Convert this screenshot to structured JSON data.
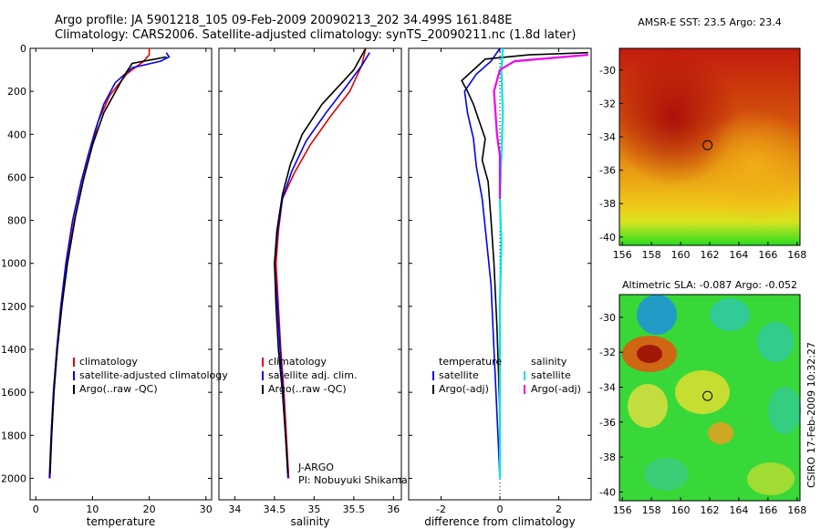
{
  "title_line1": "Argo profile: JA 5901218_105 09-Feb-2009 20090213_202 34.499S 161.848E",
  "title_line2": "Climatology: CARS2006. Satellite-adjusted climatology: synTS_20090211.nc (1.8d later)",
  "side_label": "CSIRO 17-Feb-2009 10:32:27",
  "colors": {
    "red": "#e00000",
    "blue": "#0000ee",
    "black": "#000000",
    "cyan": "#00e5e5",
    "magenta": "#ee00ee"
  },
  "chart_data": [
    {
      "type": "line",
      "xlabel": "temperature",
      "xlim": [
        -1,
        31
      ],
      "ylim": [
        0,
        2100
      ],
      "y_reversed": true,
      "xticks": [
        "0",
        "10",
        "20",
        "30"
      ],
      "xtick_values": [
        0,
        10,
        20,
        30
      ],
      "yticks": [
        "0",
        "200",
        "400",
        "600",
        "800",
        "1000",
        "1200",
        "1400",
        "1600",
        "1800",
        "2000"
      ],
      "ytick_values": [
        0,
        200,
        400,
        600,
        800,
        1000,
        1200,
        1400,
        1600,
        1800,
        2000
      ],
      "legend": [
        "climatology",
        "satellite-adjusted climatology",
        "Argo(..raw -QC)"
      ],
      "series": [
        {
          "name": "climatology",
          "color": "red",
          "points": [
            [
              20,
              0
            ],
            [
              20,
              30
            ],
            [
              19,
              60
            ],
            [
              16,
              120
            ],
            [
              13,
              220
            ],
            [
              11,
              340
            ],
            [
              9.8,
              470
            ],
            [
              8.3,
              620
            ],
            [
              6.8,
              800
            ],
            [
              5.5,
              1000
            ],
            [
              4.6,
              1200
            ],
            [
              3.8,
              1400
            ],
            [
              3.2,
              1600
            ],
            [
              2.8,
              1800
            ],
            [
              2.5,
              2000
            ]
          ]
        },
        {
          "name": "satellite-adjusted climatology",
          "color": "blue",
          "points": [
            [
              23,
              20
            ],
            [
              23.5,
              40
            ],
            [
              22,
              60
            ],
            [
              17,
              90
            ],
            [
              14,
              160
            ],
            [
              12,
              260
            ],
            [
              10.5,
              380
            ],
            [
              9.2,
              500
            ],
            [
              8,
              620
            ],
            [
              6.5,
              800
            ],
            [
              5.3,
              1000
            ],
            [
              4.4,
              1200
            ],
            [
              3.7,
              1400
            ],
            [
              3.1,
              1600
            ],
            [
              2.7,
              1800
            ],
            [
              2.4,
              2000
            ]
          ]
        },
        {
          "name": "Argo(..raw -QC)",
          "color": "black",
          "points": [
            [
              23,
              40
            ],
            [
              21,
              50
            ],
            [
              17,
              70
            ],
            [
              16,
              110
            ],
            [
              14.5,
              180
            ],
            [
              12,
              300
            ],
            [
              10,
              450
            ],
            [
              8.5,
              600
            ],
            [
              7,
              780
            ],
            [
              5.6,
              1000
            ],
            [
              4.6,
              1200
            ],
            [
              3.8,
              1400
            ],
            [
              3.2,
              1600
            ],
            [
              2.8,
              1800
            ],
            [
              2.5,
              1980
            ]
          ]
        }
      ]
    },
    {
      "type": "line",
      "xlabel": "salinity",
      "xlim": [
        33.8,
        36.1
      ],
      "ylim": [
        0,
        2100
      ],
      "y_reversed": true,
      "xticks": [
        "34",
        "34.5",
        "35",
        "35.5",
        "36"
      ],
      "xtick_values": [
        34,
        34.5,
        35,
        35.5,
        36
      ],
      "legend": [
        "climatology",
        "satellite adj. clim.",
        "Argo(..raw -QC)"
      ],
      "annotation": [
        "J-ARGO",
        "PI: Nobuyuki Shikama"
      ],
      "series": [
        {
          "name": "climatology",
          "color": "red",
          "points": [
            [
              35.65,
              0
            ],
            [
              35.6,
              80
            ],
            [
              35.45,
              200
            ],
            [
              35.2,
              320
            ],
            [
              34.95,
              450
            ],
            [
              34.75,
              580
            ],
            [
              34.6,
              700
            ],
            [
              34.55,
              850
            ],
            [
              34.52,
              1000
            ],
            [
              34.55,
              1200
            ],
            [
              34.58,
              1400
            ],
            [
              34.62,
              1600
            ],
            [
              34.65,
              1800
            ],
            [
              34.68,
              2000
            ]
          ]
        },
        {
          "name": "satellite adj. clim.",
          "color": "blue",
          "points": [
            [
              35.7,
              20
            ],
            [
              35.6,
              80
            ],
            [
              35.4,
              180
            ],
            [
              35.15,
              300
            ],
            [
              34.9,
              430
            ],
            [
              34.72,
              570
            ],
            [
              34.6,
              700
            ],
            [
              34.54,
              850
            ],
            [
              34.5,
              1000
            ],
            [
              34.54,
              1200
            ],
            [
              34.57,
              1400
            ],
            [
              34.61,
              1600
            ],
            [
              34.64,
              1800
            ],
            [
              34.67,
              2000
            ]
          ]
        },
        {
          "name": "Argo(..raw -QC)",
          "color": "black",
          "points": [
            [
              35.65,
              0
            ],
            [
              35.5,
              100
            ],
            [
              35.35,
              160
            ],
            [
              35.1,
              260
            ],
            [
              34.85,
              400
            ],
            [
              34.7,
              540
            ],
            [
              34.6,
              680
            ],
            [
              34.53,
              850
            ],
            [
              34.5,
              1000
            ],
            [
              34.52,
              1200
            ],
            [
              34.55,
              1400
            ],
            [
              34.6,
              1600
            ],
            [
              34.64,
              1800
            ],
            [
              34.67,
              1980
            ]
          ]
        }
      ]
    },
    {
      "type": "line",
      "xlabel": "difference from climatology",
      "xlim": [
        -3.1,
        3.1
      ],
      "ylim": [
        0,
        2100
      ],
      "y_reversed": true,
      "xticks": [
        "-2",
        "0",
        "2"
      ],
      "xtick_values": [
        -2,
        0,
        2
      ],
      "legend_left": [
        "temperature",
        "satellite",
        "Argo(-adj)"
      ],
      "legend_right": [
        "salinity",
        "satellite",
        "Argo(-adj)"
      ],
      "series": [
        {
          "name": "satellite",
          "color": "blue",
          "points": [
            [
              0,
              0
            ],
            [
              -0.3,
              60
            ],
            [
              -0.8,
              120
            ],
            [
              -1.2,
              200
            ],
            [
              -1.1,
              300
            ],
            [
              -0.9,
              420
            ],
            [
              -0.8,
              550
            ],
            [
              -0.6,
              700
            ],
            [
              -0.45,
              900
            ],
            [
              -0.3,
              1100
            ],
            [
              -0.2,
              1400
            ],
            [
              -0.1,
              1700
            ],
            [
              0,
              2000
            ]
          ]
        },
        {
          "name": "Argo(-adj)",
          "color": "black",
          "points": [
            [
              3,
              20
            ],
            [
              1,
              30
            ],
            [
              -0.5,
              50
            ],
            [
              -0.9,
              100
            ],
            [
              -1.3,
              150
            ],
            [
              -1.1,
              200
            ],
            [
              -0.9,
              260
            ],
            [
              -0.7,
              340
            ],
            [
              -0.5,
              420
            ],
            [
              -0.6,
              520
            ],
            [
              -0.4,
              620
            ],
            [
              -0.3,
              800
            ],
            [
              -0.2,
              1000
            ],
            [
              -0.1,
              1300
            ],
            [
              0,
              1700
            ],
            [
              0,
              1980
            ]
          ]
        },
        {
          "name": "satellite",
          "color": "cyan",
          "points": [
            [
              0.1,
              0
            ],
            [
              0.05,
              100
            ],
            [
              0.1,
              300
            ],
            [
              0.05,
              500
            ],
            [
              0,
              700
            ],
            [
              0.05,
              900
            ],
            [
              0,
              1200
            ],
            [
              0,
              1500
            ],
            [
              0,
              1800
            ],
            [
              0,
              2000
            ]
          ]
        },
        {
          "name": "Argo(-adj)",
          "color": "magenta",
          "points": [
            [
              3,
              30
            ],
            [
              0.5,
              60
            ],
            [
              0,
              100
            ],
            [
              -0.2,
              200
            ],
            [
              -0.15,
              300
            ],
            [
              -0.1,
              400
            ],
            [
              0,
              500
            ],
            [
              0,
              600
            ],
            [
              0,
              700
            ]
          ]
        }
      ]
    },
    {
      "type": "heatmap",
      "title": "AMSR-E SST: 23.5 Argo: 23.4",
      "xlim": [
        155.8,
        168.2
      ],
      "ylim": [
        -40.5,
        -28.7
      ],
      "xticks": [
        "156",
        "158",
        "160",
        "162",
        "164",
        "166",
        "168"
      ],
      "xtick_values": [
        156,
        158,
        160,
        162,
        164,
        166,
        168
      ],
      "yticks": [
        "-30",
        "-32",
        "-34",
        "-36",
        "-38",
        "-40"
      ],
      "ytick_values": [
        -30,
        -32,
        -34,
        -36,
        -38,
        -40
      ],
      "marker": [
        161.85,
        -34.5
      ]
    },
    {
      "type": "heatmap",
      "title": "Altimetric SLA: -0.087 Argo: -0.052",
      "xlim": [
        155.8,
        168.2
      ],
      "ylim": [
        -40.5,
        -28.7
      ],
      "xticks": [
        "156",
        "158",
        "160",
        "162",
        "164",
        "166",
        "168"
      ],
      "xtick_values": [
        156,
        158,
        160,
        162,
        164,
        166,
        168
      ],
      "yticks": [
        "-30",
        "-32",
        "-34",
        "-36",
        "-38",
        "-40"
      ],
      "ytick_values": [
        -30,
        -32,
        -34,
        -36,
        -38,
        -40
      ],
      "marker": [
        161.85,
        -34.5
      ]
    }
  ]
}
